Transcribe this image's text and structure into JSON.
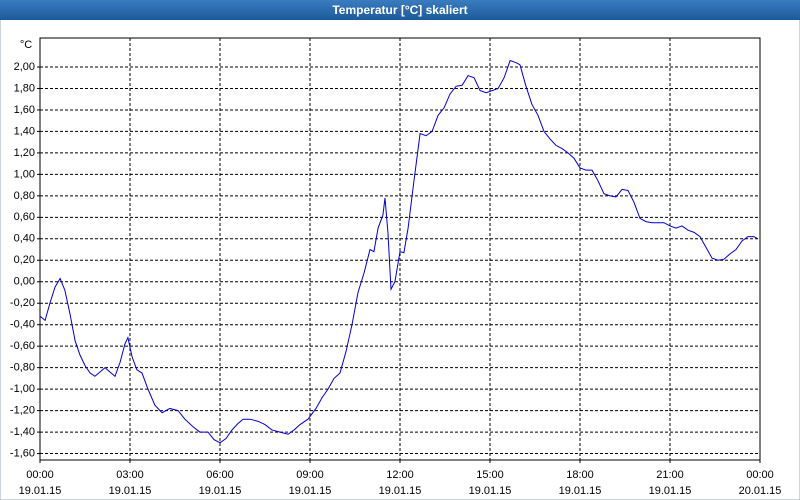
{
  "chart_data": {
    "type": "line",
    "title": "Temperatur [°C] skaliert",
    "y_unit": "°C",
    "color": "#0000cc",
    "grid": true,
    "xlim": [
      0,
      24
    ],
    "ylim": [
      -1.66,
      2.27
    ],
    "xticks": [
      {
        "value": 0,
        "label": "00:00",
        "date": "19.01.15"
      },
      {
        "value": 3,
        "label": "03:00",
        "date": "19.01.15"
      },
      {
        "value": 6,
        "label": "06:00",
        "date": "19.01.15"
      },
      {
        "value": 9,
        "label": "09:00",
        "date": "19.01.15"
      },
      {
        "value": 12,
        "label": "12:00",
        "date": "19.01.15"
      },
      {
        "value": 15,
        "label": "15:00",
        "date": "19.01.15"
      },
      {
        "value": 18,
        "label": "18:00",
        "date": "19.01.15"
      },
      {
        "value": 21,
        "label": "21:00",
        "date": "19.01.15"
      },
      {
        "value": 24,
        "label": "00:00",
        "date": "20.01.15"
      }
    ],
    "yticks": [
      {
        "value": -1.6,
        "label": "-1,60"
      },
      {
        "value": -1.4,
        "label": "-1,40"
      },
      {
        "value": -1.2,
        "label": "-1,20"
      },
      {
        "value": -1.0,
        "label": "-1,00"
      },
      {
        "value": -0.8,
        "label": "-0,80"
      },
      {
        "value": -0.6,
        "label": "-0,60"
      },
      {
        "value": -0.4,
        "label": "-0,40"
      },
      {
        "value": -0.2,
        "label": "-0,20"
      },
      {
        "value": 0,
        "label": "0,00"
      },
      {
        "value": 0.2,
        "label": "0,20"
      },
      {
        "value": 0.4,
        "label": "0,40"
      },
      {
        "value": 0.6,
        "label": "0,60"
      },
      {
        "value": 0.8,
        "label": "0,80"
      },
      {
        "value": 1.0,
        "label": "1,00"
      },
      {
        "value": 1.2,
        "label": "1,20"
      },
      {
        "value": 1.4,
        "label": "1,40"
      },
      {
        "value": 1.6,
        "label": "1,60"
      },
      {
        "value": 1.8,
        "label": "1,80"
      },
      {
        "value": 2.0,
        "label": "2,00"
      }
    ],
    "x": [
      0,
      0.17,
      0.33,
      0.5,
      0.67,
      0.83,
      1,
      1.17,
      1.33,
      1.5,
      1.67,
      1.83,
      2,
      2.17,
      2.33,
      2.5,
      2.67,
      2.83,
      2.93,
      3.07,
      3.23,
      3.4,
      3.6,
      3.83,
      4.07,
      4.33,
      4.6,
      4.83,
      5.1,
      5.33,
      5.6,
      5.8,
      6,
      6.2,
      6.4,
      6.6,
      6.77,
      7,
      7.27,
      7.5,
      7.73,
      8,
      8.27,
      8.47,
      8.67,
      8.93,
      9.2,
      9.4,
      9.6,
      9.8,
      10,
      10.2,
      10.4,
      10.6,
      10.8,
      11,
      11.13,
      11.27,
      11.43,
      11.5,
      11.6,
      11.7,
      11.83,
      12,
      12.13,
      12.27,
      12.47,
      12.67,
      12.87,
      13.07,
      13.27,
      13.47,
      13.67,
      13.87,
      14.07,
      14.27,
      14.47,
      14.67,
      14.87,
      15.07,
      15.27,
      15.47,
      15.67,
      15.87,
      16,
      16.2,
      16.4,
      16.6,
      16.8,
      17,
      17.2,
      17.4,
      17.6,
      17.8,
      18,
      18.2,
      18.4,
      18.6,
      18.8,
      19,
      19.2,
      19.4,
      19.6,
      19.8,
      20,
      20.2,
      20.4,
      20.6,
      20.8,
      21,
      21.2,
      21.4,
      21.6,
      21.8,
      22,
      22.2,
      22.4,
      22.6,
      22.8,
      23,
      23.2,
      23.4,
      23.6,
      23.8,
      23.93
    ],
    "series": [
      {
        "color": "#0000cc",
        "values": [
          -0.32,
          -0.36,
          -0.2,
          -0.05,
          0.03,
          -0.08,
          -0.3,
          -0.55,
          -0.68,
          -0.78,
          -0.85,
          -0.88,
          -0.84,
          -0.8,
          -0.84,
          -0.88,
          -0.75,
          -0.58,
          -0.52,
          -0.7,
          -0.82,
          -0.85,
          -1.0,
          -1.15,
          -1.22,
          -1.18,
          -1.2,
          -1.28,
          -1.35,
          -1.4,
          -1.4,
          -1.47,
          -1.5,
          -1.46,
          -1.38,
          -1.32,
          -1.28,
          -1.28,
          -1.3,
          -1.33,
          -1.38,
          -1.4,
          -1.42,
          -1.38,
          -1.33,
          -1.28,
          -1.18,
          -1.08,
          -1.0,
          -0.9,
          -0.85,
          -0.65,
          -0.4,
          -0.1,
          0.08,
          0.3,
          0.28,
          0.5,
          0.62,
          0.78,
          0.45,
          -0.07,
          0.0,
          0.28,
          0.27,
          0.5,
          0.95,
          1.38,
          1.36,
          1.4,
          1.55,
          1.62,
          1.75,
          1.82,
          1.83,
          1.92,
          1.9,
          1.78,
          1.76,
          1.78,
          1.8,
          1.9,
          2.06,
          2.04,
          2.02,
          1.82,
          1.65,
          1.55,
          1.4,
          1.33,
          1.27,
          1.24,
          1.2,
          1.15,
          1.06,
          1.04,
          1.04,
          0.94,
          0.82,
          0.8,
          0.79,
          0.86,
          0.85,
          0.74,
          0.59,
          0.56,
          0.55,
          0.55,
          0.55,
          0.52,
          0.5,
          0.52,
          0.48,
          0.46,
          0.42,
          0.32,
          0.22,
          0.2,
          0.21,
          0.26,
          0.3,
          0.38,
          0.42,
          0.42,
          0.4
        ]
      }
    ]
  }
}
